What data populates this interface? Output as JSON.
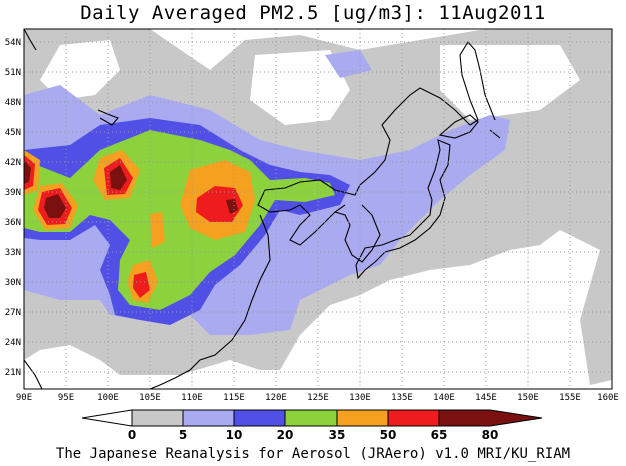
{
  "title": "Daily Averaged PM2.5 [ug/m3]: 11Aug2011",
  "footer": "The Japanese Reanalysis for Aerosol (JRAero) v1.0 MRI/KU_RIAM",
  "map": {
    "lon_range": [
      90,
      160
    ],
    "lat_range": [
      19.5,
      55.5
    ],
    "lat_labels": [
      "54N",
      "51N",
      "48N",
      "45N",
      "42N",
      "39N",
      "36N",
      "33N",
      "30N",
      "27N",
      "24N",
      "21N"
    ],
    "lon_labels": [
      "90E",
      "95E",
      "100E",
      "105E",
      "110E",
      "115E",
      "120E",
      "125E",
      "130E",
      "135E",
      "140E",
      "145E",
      "150E",
      "155E",
      "160E"
    ]
  },
  "colorbar": {
    "labels": [
      "0",
      "5",
      "10",
      "20",
      "35",
      "50",
      "65",
      "80"
    ],
    "colors": [
      "#ffffff",
      "#c8c8c8",
      "#aaaaf0",
      "#5050e6",
      "#8cd23c",
      "#f5a01e",
      "#ee1c1c",
      "#7a1010"
    ]
  }
}
